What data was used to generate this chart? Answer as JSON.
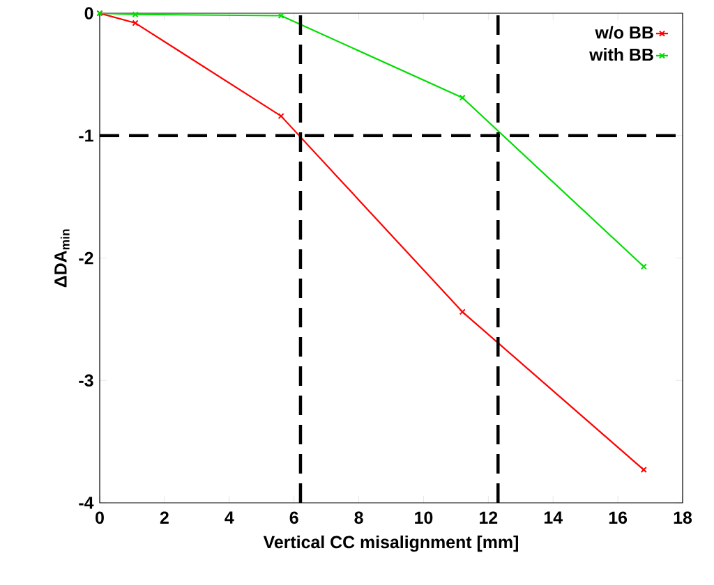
{
  "chart_data": {
    "type": "line",
    "xlabel": "Vertical CC misalignment [mm]",
    "ylabel": "ΔDA$_{min}$",
    "xlim": [
      0,
      18
    ],
    "ylim": [
      -4,
      0
    ],
    "xticks": [
      0,
      2,
      4,
      6,
      8,
      10,
      12,
      14,
      16,
      18
    ],
    "yticks": [
      -4,
      -3,
      -2,
      -1,
      0
    ],
    "grid": false,
    "legend": "top right",
    "marker": "cross",
    "line_style": "solid",
    "series": [
      {
        "name": "w/o BB",
        "color": "#ff0000",
        "x": [
          0,
          1.1,
          5.6,
          11.2,
          16.8
        ],
        "values": [
          0,
          -0.08,
          -0.84,
          -2.44,
          -3.73
        ]
      },
      {
        "name": "with BB",
        "color": "#00dd00",
        "x": [
          0,
          1.1,
          5.6,
          11.2,
          16.8
        ],
        "values": [
          0,
          -0.01,
          -0.02,
          -0.69,
          -2.07
        ]
      }
    ],
    "ref_lines": [
      {
        "axis": "y",
        "value": -1,
        "color": "#000000",
        "line_style": "dashed"
      },
      {
        "axis": "x",
        "value": 6.2,
        "color": "#000000",
        "line_style": "dashed"
      },
      {
        "axis": "x",
        "value": 12.3,
        "color": "#000000",
        "line_style": "dashed"
      }
    ]
  }
}
